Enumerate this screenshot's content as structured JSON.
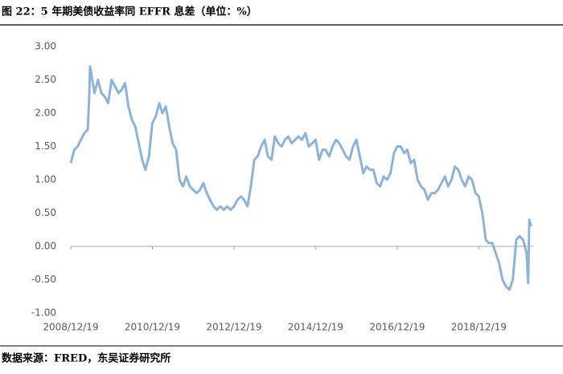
{
  "chart_data": {
    "type": "line",
    "title": "图 22：5 年期美债收益率同 EFFR 息差（单位：%）",
    "source": "数据来源：FRED，东吴证券研究所",
    "color": "#8fb3d6",
    "xlim": [
      "2008/12/19",
      "2020/04/19"
    ],
    "xticks": [
      "2008/12/19",
      "2010/12/19",
      "2012/12/19",
      "2014/12/19",
      "2016/12/19",
      "2018/12/19"
    ],
    "ylim": [
      -1,
      3
    ],
    "yticks": [
      {
        "value": 3,
        "label": "3.00"
      },
      {
        "value": 2.5,
        "label": "2.50"
      },
      {
        "value": 2,
        "label": "2.00"
      },
      {
        "value": 1.5,
        "label": "1.50"
      },
      {
        "value": 1,
        "label": "1.00"
      },
      {
        "value": 0.5,
        "label": "0.50"
      },
      {
        "value": 0,
        "label": "0.00"
      },
      {
        "value": -0.5,
        "label": "-0.50"
      },
      {
        "value": -1,
        "label": "-1.00"
      }
    ],
    "x": [
      "2008/12/19",
      "2009/01/19",
      "2009/02/19",
      "2009/03/19",
      "2009/04/19",
      "2009/05/19",
      "2009/06/01",
      "2009/06/10",
      "2009/07/19",
      "2009/08/19",
      "2009/09/19",
      "2009/10/19",
      "2009/11/19",
      "2009/12/19",
      "2010/01/19",
      "2010/02/19",
      "2010/03/19",
      "2010/04/19",
      "2010/05/19",
      "2010/06/19",
      "2010/07/19",
      "2010/08/19",
      "2010/09/19",
      "2010/10/19",
      "2010/11/19",
      "2010/12/19",
      "2011/01/19",
      "2011/02/19",
      "2011/03/19",
      "2011/04/19",
      "2011/05/19",
      "2011/06/19",
      "2011/07/19",
      "2011/08/19",
      "2011/09/19",
      "2011/10/19",
      "2011/11/19",
      "2011/12/19",
      "2012/01/19",
      "2012/02/19",
      "2012/03/19",
      "2012/04/19",
      "2012/05/19",
      "2012/06/19",
      "2012/07/19",
      "2012/08/19",
      "2012/09/19",
      "2012/10/19",
      "2012/11/19",
      "2012/12/19",
      "2013/01/19",
      "2013/02/19",
      "2013/03/19",
      "2013/04/19",
      "2013/05/19",
      "2013/06/19",
      "2013/07/19",
      "2013/08/19",
      "2013/09/19",
      "2013/10/19",
      "2013/11/19",
      "2013/12/19",
      "2014/01/19",
      "2014/02/19",
      "2014/03/19",
      "2014/04/19",
      "2014/05/19",
      "2014/06/19",
      "2014/07/19",
      "2014/08/19",
      "2014/09/19",
      "2014/10/19",
      "2014/11/19",
      "2014/12/19",
      "2015/01/19",
      "2015/02/19",
      "2015/03/19",
      "2015/04/19",
      "2015/05/19",
      "2015/06/19",
      "2015/07/19",
      "2015/08/19",
      "2015/09/19",
      "2015/10/19",
      "2015/11/19",
      "2015/12/19",
      "2016/01/19",
      "2016/02/19",
      "2016/03/19",
      "2016/04/19",
      "2016/05/19",
      "2016/06/19",
      "2016/07/19",
      "2016/08/19",
      "2016/09/19",
      "2016/10/19",
      "2016/11/19",
      "2016/12/19",
      "2017/01/19",
      "2017/02/19",
      "2017/03/19",
      "2017/04/19",
      "2017/05/19",
      "2017/06/19",
      "2017/07/19",
      "2017/08/19",
      "2017/09/19",
      "2017/10/19",
      "2017/11/19",
      "2017/12/19",
      "2018/01/19",
      "2018/02/19",
      "2018/03/19",
      "2018/04/19",
      "2018/05/19",
      "2018/06/19",
      "2018/07/19",
      "2018/08/19",
      "2018/09/19",
      "2018/10/19",
      "2018/11/19",
      "2018/12/19",
      "2019/01/19",
      "2019/02/19",
      "2019/03/19",
      "2019/04/19",
      "2019/05/19",
      "2019/06/19",
      "2019/07/19",
      "2019/08/19",
      "2019/09/19",
      "2019/10/19",
      "2019/11/19",
      "2019/12/19",
      "2020/01/19",
      "2020/02/19",
      "2020/03/05",
      "2020/03/15",
      "2020/03/31"
    ],
    "values": [
      1.25,
      1.45,
      1.5,
      1.6,
      1.7,
      1.75,
      2.2,
      2.7,
      2.3,
      2.5,
      2.3,
      2.25,
      2.15,
      2.5,
      2.4,
      2.3,
      2.35,
      2.45,
      2.1,
      1.9,
      1.8,
      1.55,
      1.3,
      1.15,
      1.35,
      1.85,
      1.95,
      2.15,
      2.0,
      2.1,
      1.8,
      1.55,
      1.45,
      1.0,
      0.9,
      1.05,
      0.9,
      0.85,
      0.8,
      0.85,
      0.95,
      0.8,
      0.7,
      0.6,
      0.55,
      0.6,
      0.55,
      0.6,
      0.55,
      0.6,
      0.7,
      0.75,
      0.7,
      0.6,
      0.9,
      1.3,
      1.35,
      1.5,
      1.6,
      1.35,
      1.3,
      1.65,
      1.55,
      1.5,
      1.6,
      1.65,
      1.55,
      1.6,
      1.65,
      1.6,
      1.7,
      1.5,
      1.55,
      1.6,
      1.3,
      1.45,
      1.45,
      1.35,
      1.5,
      1.6,
      1.55,
      1.45,
      1.35,
      1.3,
      1.5,
      1.6,
      1.35,
      1.1,
      1.2,
      1.15,
      1.15,
      0.95,
      0.9,
      1.05,
      1.0,
      1.1,
      1.4,
      1.5,
      1.5,
      1.4,
      1.45,
      1.25,
      1.3,
      1.0,
      0.9,
      0.85,
      0.7,
      0.8,
      0.8,
      0.85,
      0.95,
      1.05,
      0.9,
      1.0,
      1.2,
      1.15,
      1.0,
      0.9,
      1.05,
      1.0,
      0.8,
      0.75,
      0.5,
      0.1,
      0.05,
      0.05,
      -0.1,
      -0.25,
      -0.5,
      -0.6,
      -0.65,
      -0.5,
      0.1,
      0.15,
      0.1,
      -0.1,
      -0.55,
      0.4,
      0.3
    ]
  }
}
